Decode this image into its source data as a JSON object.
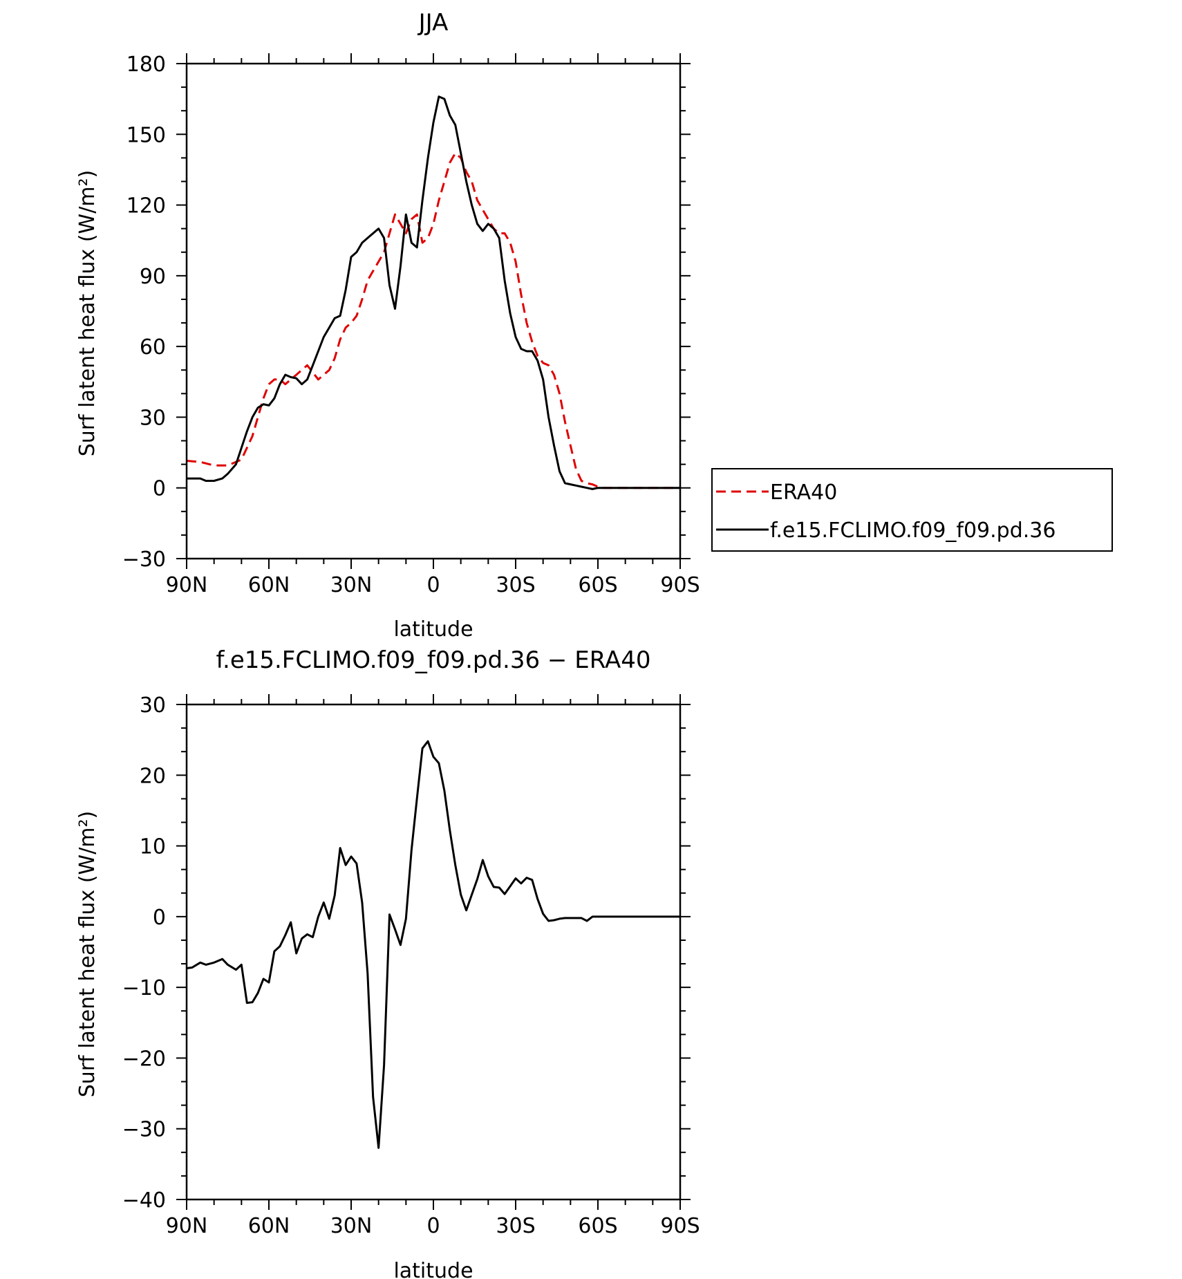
{
  "chart_data": [
    {
      "type": "line",
      "title": "JJA",
      "xlabel": "latitude",
      "ylabel": "Surf latent heat flux (W/m²)",
      "xlim": [
        90,
        -90
      ],
      "ylim": [
        -30,
        180
      ],
      "xticks": [
        90,
        60,
        30,
        0,
        -30,
        -60,
        -90
      ],
      "xticklabels": [
        "90N",
        "60N",
        "30N",
        "0",
        "30S",
        "60S",
        "90S"
      ],
      "yticks": [
        -30,
        0,
        30,
        60,
        90,
        120,
        150,
        180
      ],
      "yticklabels": [
        "−30",
        "0",
        "30",
        "60",
        "90",
        "120",
        "150",
        "180"
      ],
      "grid": false,
      "legend_position": "right",
      "series": [
        {
          "name": "ERA40",
          "color": "#e00000",
          "dash": "dashed",
          "x": [
            90,
            85,
            80,
            75,
            70,
            66,
            64,
            62,
            60,
            58,
            56,
            54,
            52,
            50,
            48,
            46,
            44,
            42,
            40,
            38,
            36,
            34,
            32,
            30,
            28,
            26,
            24,
            22,
            20,
            18,
            16,
            14,
            12,
            10,
            8,
            6,
            4,
            2,
            0,
            -2,
            -4,
            -6,
            -8,
            -10,
            -12,
            -14,
            -16,
            -18,
            -20,
            -22,
            -24,
            -26,
            -28,
            -30,
            -32,
            -34,
            -36,
            -38,
            -40,
            -42,
            -44,
            -46,
            -48,
            -50,
            -52,
            -54,
            -56,
            -58,
            -60,
            -62,
            -64,
            -66,
            -68,
            -70,
            -75,
            -80,
            -85,
            -90
          ],
          "y": [
            11.5,
            11,
            9.5,
            9.5,
            12,
            22,
            30,
            38,
            44,
            46,
            46,
            44,
            46,
            48,
            50,
            52,
            49,
            46,
            48,
            50,
            55,
            63,
            68,
            70,
            73,
            80,
            88,
            92,
            96,
            100,
            108,
            116,
            112,
            108,
            114,
            116,
            104,
            106,
            112,
            122,
            130,
            138,
            142,
            140,
            134,
            130,
            122,
            118,
            114,
            110,
            108,
            108,
            104,
            96,
            82,
            70,
            62,
            56,
            53,
            52,
            48,
            40,
            28,
            18,
            8,
            3,
            2,
            1.5,
            0.5,
            0,
            0,
            0,
            0,
            0,
            0,
            0,
            0,
            0
          ]
        },
        {
          "name": "f.e15.FCLIMO.f09_f09.pd.36",
          "color": "#000000",
          "dash": "solid",
          "x": [
            90,
            88,
            85,
            83,
            80,
            77,
            75,
            72,
            70,
            68,
            66,
            64,
            62,
            60,
            58,
            56,
            54,
            52,
            50,
            48,
            46,
            44,
            42,
            40,
            38,
            36,
            34,
            32,
            30,
            28,
            26,
            24,
            22,
            20,
            18,
            16,
            14,
            12,
            10,
            8,
            6,
            4,
            2,
            0,
            -2,
            -4,
            -6,
            -8,
            -10,
            -12,
            -14,
            -16,
            -18,
            -20,
            -22,
            -24,
            -26,
            -28,
            -30,
            -32,
            -34,
            -36,
            -38,
            -40,
            -42,
            -44,
            -46,
            -48,
            -50,
            -52,
            -54,
            -56,
            -58,
            -60,
            -62,
            -64,
            -66,
            -68,
            -70,
            -72,
            -75,
            -78,
            -80,
            -82,
            -85,
            -88,
            -90
          ],
          "y": [
            4,
            4,
            4,
            3,
            3,
            4,
            6,
            10,
            17,
            24,
            30,
            34,
            35.5,
            35,
            38,
            44,
            48,
            47,
            46.5,
            44,
            46,
            52,
            58,
            64,
            68,
            72,
            73,
            84,
            98,
            100,
            104,
            106,
            108,
            110,
            106,
            86,
            76,
            94,
            116,
            104,
            102,
            122,
            140,
            155,
            166,
            165,
            158,
            154,
            142,
            130,
            120,
            112,
            109,
            112,
            110,
            106,
            88,
            74,
            64,
            59,
            58,
            58,
            54,
            46,
            30,
            18,
            7,
            2,
            1.5,
            1,
            0.5,
            0,
            -0.5,
            0,
            0,
            0,
            0,
            0,
            0,
            0,
            0,
            0,
            0,
            0,
            0,
            0,
            0
          ]
        }
      ]
    },
    {
      "type": "line",
      "title": "f.e15.FCLIMO.f09_f09.pd.36 − ERA40",
      "xlabel": "latitude",
      "ylabel": "Surf latent heat flux (W/m²)",
      "xlim": [
        90,
        -90
      ],
      "ylim": [
        -40,
        30
      ],
      "xticks": [
        90,
        60,
        30,
        0,
        -30,
        -60,
        -90
      ],
      "xticklabels": [
        "90N",
        "60N",
        "30N",
        "0",
        "30S",
        "60S",
        "90S"
      ],
      "yticks": [
        -40,
        -30,
        -20,
        -10,
        0,
        10,
        20,
        30
      ],
      "yticklabels": [
        "−40",
        "−30",
        "−20",
        "−10",
        "0",
        "10",
        "20",
        "30"
      ],
      "grid": false,
      "series": [
        {
          "color": "#000000",
          "dash": "solid",
          "x": [
            90,
            88,
            85,
            83,
            80,
            77,
            75,
            72,
            70,
            68,
            66,
            64,
            62,
            60,
            58,
            56,
            54,
            52,
            50,
            48,
            46,
            44,
            42,
            40,
            38,
            36,
            34,
            32,
            30,
            28,
            26,
            24,
            22,
            20,
            18,
            16,
            14,
            12,
            10,
            8,
            6,
            4,
            2,
            0,
            -2,
            -4,
            -6,
            -8,
            -10,
            -12,
            -14,
            -16,
            -18,
            -20,
            -22,
            -24,
            -26,
            -28,
            -30,
            -32,
            -34,
            -36,
            -38,
            -40,
            -42,
            -44,
            -46,
            -48,
            -50,
            -52,
            -54,
            -56,
            -58,
            -60,
            -62,
            -64,
            -66,
            -68,
            -70,
            -72,
            -75,
            -78,
            -80,
            -82,
            -85,
            -88,
            -90
          ],
          "y": [
            -7.3,
            -7.2,
            -6.5,
            -6.8,
            -6.5,
            -6,
            -6.8,
            -7.5,
            -6.8,
            -12.2,
            -12.1,
            -10.8,
            -8.8,
            -9.3,
            -4.9,
            -4.2,
            -2.6,
            -0.8,
            -5.2,
            -3.1,
            -2.5,
            -2.9,
            0,
            2,
            -0.3,
            3,
            9.7,
            7.3,
            8.5,
            7.5,
            2,
            -8,
            -25.5,
            -32.7,
            -21,
            0.3,
            -1.8,
            -4,
            -0.3,
            9.4,
            16.7,
            23.8,
            24.8,
            22.6,
            21.7,
            17.8,
            12.2,
            7.3,
            3.1,
            0.9,
            3.1,
            5.3,
            8,
            5.7,
            4.2,
            4.1,
            3.2,
            4.3,
            5.4,
            4.7,
            5.5,
            5.2,
            2.5,
            0.4,
            -0.6,
            -0.5,
            -0.3,
            -0.2,
            -0.2,
            -0.2,
            -0.2,
            -0.6,
            0,
            0,
            0,
            0,
            0,
            0,
            0,
            0,
            0,
            0,
            0,
            0,
            0,
            0,
            0
          ]
        }
      ]
    }
  ]
}
